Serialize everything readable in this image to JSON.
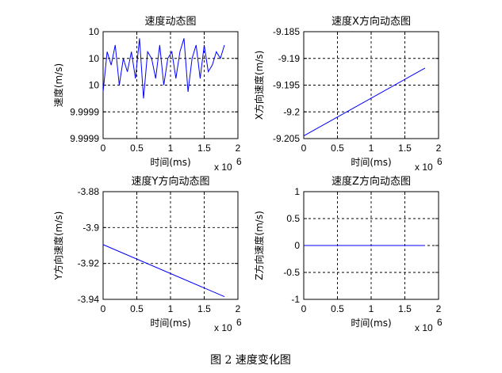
{
  "caption": "图 2  速度变化图",
  "chart_data": [
    {
      "type": "line",
      "title": "速度动态图",
      "xlabel": "时间(ms)",
      "ylabel": "速度(m/s)",
      "x_exponent": "x 10",
      "x_exponent_power": "6",
      "xlim": [
        0,
        2000000
      ],
      "ylim": [
        9.99988,
        10.00004
      ],
      "xtick_values": [
        0,
        500000,
        1000000,
        1500000,
        2000000
      ],
      "xtick_labels": [
        "0",
        "0.5",
        "1",
        "1.5",
        "2"
      ],
      "ytick_values": [
        9.99988,
        9.99992,
        9.99996,
        10.0,
        10.00004
      ],
      "ytick_labels": [
        "9.9999",
        "9.9999",
        "10",
        "10",
        "10"
      ],
      "grid": true,
      "series": [
        {
          "color": "#0000ff",
          "x": [
            0,
            60000,
            120000,
            180000,
            240000,
            300000,
            360000,
            420000,
            480000,
            540000,
            600000,
            660000,
            720000,
            780000,
            840000,
            900000,
            960000,
            1020000,
            1080000,
            1140000,
            1200000,
            1260000,
            1320000,
            1380000,
            1440000,
            1500000,
            1560000,
            1620000,
            1680000,
            1740000,
            1800000
          ],
          "y": [
            9.99995,
            10.00001,
            9.99999,
            10.00002,
            9.99996,
            10.0,
            9.99998,
            10.00001,
            9.99997,
            10.00003,
            9.99994,
            10.00001,
            10.0,
            9.99997,
            10.00002,
            9.99996,
            10.0,
            10.00001,
            9.99997,
            10.00001,
            10.00003,
            9.99995,
            10.0,
            10.00002,
            9.99997,
            10.00002,
            9.99998,
            9.99999,
            10.00001,
            10.0,
            10.00002
          ]
        }
      ]
    },
    {
      "type": "line",
      "title": "速度X方向动态图",
      "xlabel": "时间(ms)",
      "ylabel": "X方向速度(m/s)",
      "x_exponent": "x 10",
      "x_exponent_power": "6",
      "xlim": [
        0,
        2000000
      ],
      "ylim": [
        -9.205,
        -9.185
      ],
      "xtick_values": [
        0,
        500000,
        1000000,
        1500000,
        2000000
      ],
      "xtick_labels": [
        "0",
        "0.5",
        "1",
        "1.5",
        "2"
      ],
      "ytick_values": [
        -9.205,
        -9.2,
        -9.195,
        -9.19,
        -9.185
      ],
      "ytick_labels": [
        "-9.205",
        "-9.2",
        "-9.195",
        "-9.19",
        "-9.185"
      ],
      "grid": true,
      "series": [
        {
          "color": "#0000ff",
          "x": [
            0,
            1800000
          ],
          "y": [
            -9.2045,
            -9.1918
          ]
        }
      ]
    },
    {
      "type": "line",
      "title": "速度Y方向动态图",
      "xlabel": "时间(ms)",
      "ylabel": "Y方向速度(m/s)",
      "x_exponent": "x 10",
      "x_exponent_power": "6",
      "xlim": [
        0,
        2000000
      ],
      "ylim": [
        -3.94,
        -3.88
      ],
      "xtick_values": [
        0,
        500000,
        1000000,
        1500000,
        2000000
      ],
      "xtick_labels": [
        "0",
        "0.5",
        "1",
        "1.5",
        "2"
      ],
      "ytick_values": [
        -3.94,
        -3.92,
        -3.9,
        -3.88
      ],
      "ytick_labels": [
        "-3.94",
        "-3.92",
        "-3.9",
        "-3.88"
      ],
      "grid": true,
      "series": [
        {
          "color": "#0000ff",
          "x": [
            0,
            1800000
          ],
          "y": [
            -3.9095,
            -3.9385
          ]
        }
      ]
    },
    {
      "type": "line",
      "title": "速度Z方向动态图",
      "xlabel": "时间(ms)",
      "ylabel": "Z方向速度(m/s)",
      "x_exponent": "x 10",
      "x_exponent_power": "6",
      "xlim": [
        0,
        2000000
      ],
      "ylim": [
        -1,
        1
      ],
      "xtick_values": [
        0,
        500000,
        1000000,
        1500000,
        2000000
      ],
      "xtick_labels": [
        "0",
        "0.5",
        "1",
        "1.5",
        "2"
      ],
      "ytick_values": [
        -1,
        -0.5,
        0,
        0.5,
        1
      ],
      "ytick_labels": [
        "-1",
        "-0.5",
        "0",
        "0.5",
        "1"
      ],
      "grid": true,
      "series": [
        {
          "color": "#0000ff",
          "x": [
            0,
            1800000
          ],
          "y": [
            0,
            0
          ]
        }
      ]
    }
  ]
}
